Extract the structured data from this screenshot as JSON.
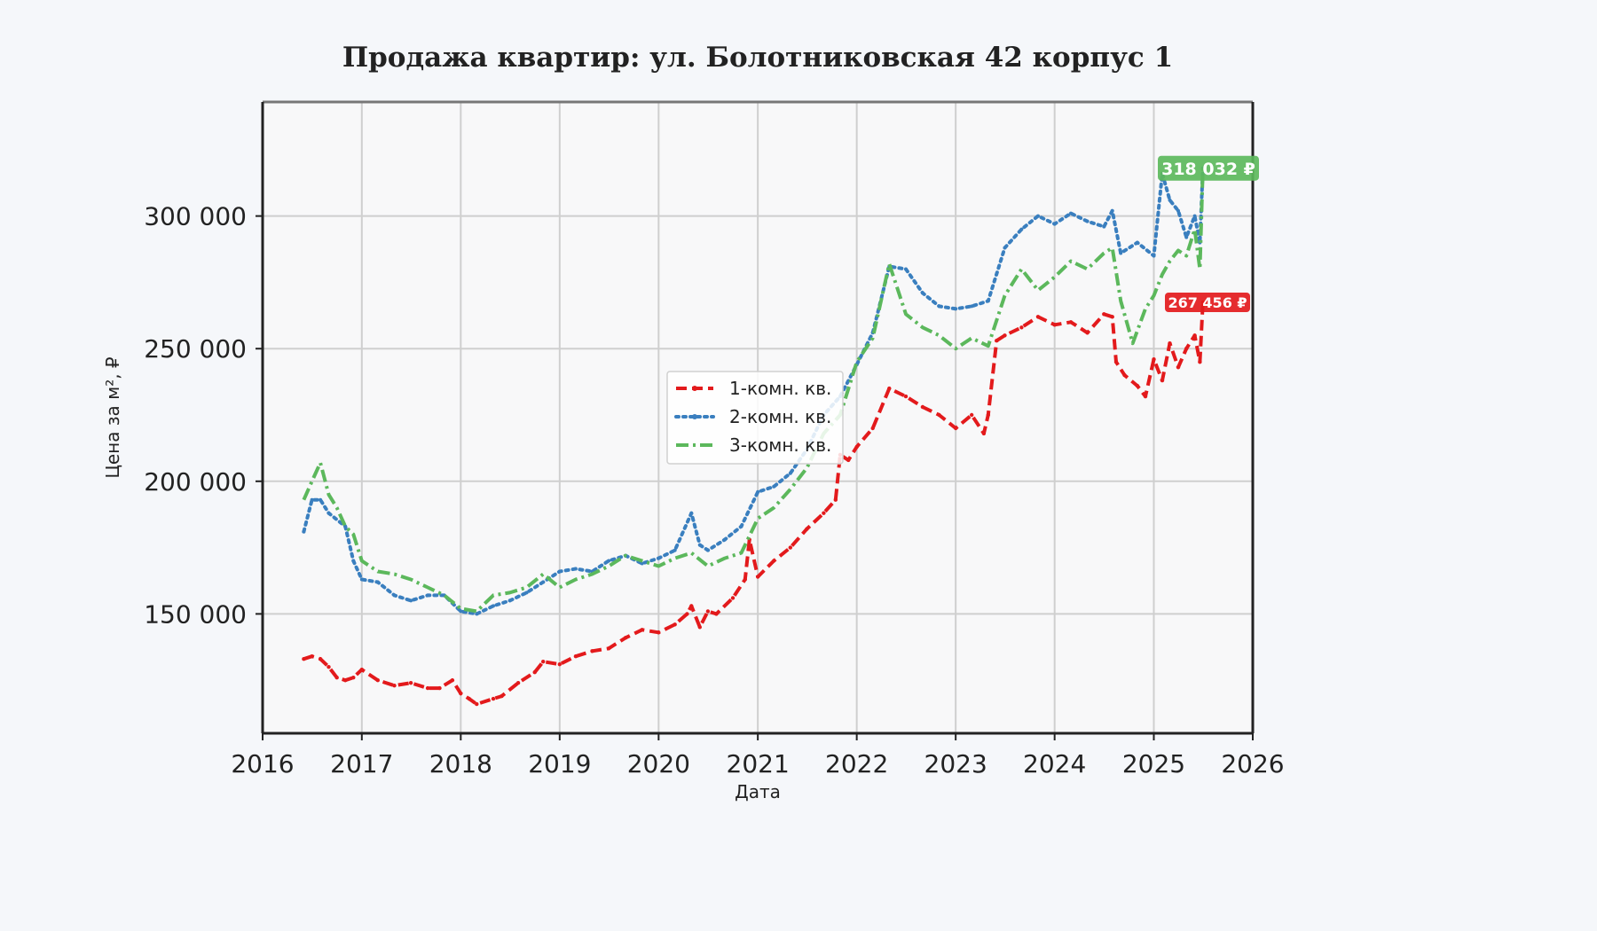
{
  "chart_data": {
    "type": "line",
    "title": "Продажа квартир: ул. Болотниковская 42 корпус 1",
    "xlabel": "Дата",
    "ylabel": "Цена за м², ₽",
    "xlim": [
      "2016-01-01",
      "2026-01-01"
    ],
    "ylim": [
      105000,
      343000
    ],
    "x_ticks": [
      "2016",
      "2017",
      "2018",
      "2019",
      "2020",
      "2021",
      "2022",
      "2023",
      "2024",
      "2025",
      "2026"
    ],
    "y_ticks": [
      {
        "value": 150000,
        "label": "150 000"
      },
      {
        "value": 200000,
        "label": "200 000"
      },
      {
        "value": 250000,
        "label": "250 000"
      },
      {
        "value": 300000,
        "label": "300 000"
      }
    ],
    "grid": true,
    "legend_position": "center",
    "series": [
      {
        "name": "1-комн. кв.",
        "color": "#e31a1c",
        "style": "dashed",
        "x": [
          "2016-06-01",
          "2016-07-01",
          "2016-08-01",
          "2016-09-01",
          "2016-10-01",
          "2016-11-01",
          "2016-12-01",
          "2017-01-01",
          "2017-03-01",
          "2017-05-01",
          "2017-07-01",
          "2017-09-01",
          "2017-10-15",
          "2017-12-01",
          "2018-01-01",
          "2018-02-01",
          "2018-03-01",
          "2018-05-01",
          "2018-06-01",
          "2018-08-01",
          "2018-10-01",
          "2018-11-01",
          "2019-01-01",
          "2019-03-01",
          "2019-05-01",
          "2019-07-01",
          "2019-09-01",
          "2019-11-01",
          "2020-01-01",
          "2020-03-01",
          "2020-04-15",
          "2020-05-01",
          "2020-06-01",
          "2020-07-01",
          "2020-08-01",
          "2020-10-01",
          "2020-11-15",
          "2020-12-01",
          "2021-01-01",
          "2021-03-01",
          "2021-05-01",
          "2021-07-01",
          "2021-09-01",
          "2021-10-15",
          "2021-11-01",
          "2021-12-01",
          "2022-01-01",
          "2022-03-01",
          "2022-05-01",
          "2022-07-01",
          "2022-09-01",
          "2022-11-01",
          "2023-01-01",
          "2023-03-01",
          "2023-04-15",
          "2023-05-01",
          "2023-06-01",
          "2023-07-01",
          "2023-09-01",
          "2023-11-01",
          "2024-01-01",
          "2024-03-01",
          "2024-05-01",
          "2024-07-01",
          "2024-08-01",
          "2024-08-15",
          "2024-09-15",
          "2024-11-01",
          "2024-12-01",
          "2025-01-01",
          "2025-02-01",
          "2025-03-01",
          "2025-04-01",
          "2025-05-01",
          "2025-06-01",
          "2025-06-20",
          "2025-07-01"
        ],
        "values": [
          133000,
          134000,
          133000,
          130000,
          126000,
          125000,
          126000,
          129000,
          125000,
          123000,
          124000,
          122000,
          122000,
          125000,
          120000,
          118000,
          116000,
          118000,
          119000,
          124000,
          128000,
          132000,
          131000,
          134000,
          136000,
          137000,
          141000,
          144000,
          143000,
          146000,
          150000,
          153000,
          145000,
          151000,
          150000,
          156000,
          163000,
          178000,
          164000,
          170000,
          175000,
          182000,
          188000,
          193000,
          210000,
          208000,
          213000,
          220000,
          235000,
          232000,
          228000,
          225000,
          220000,
          225000,
          218000,
          225000,
          253000,
          255000,
          258000,
          262000,
          259000,
          260000,
          256000,
          263000,
          262000,
          245000,
          240000,
          236000,
          232000,
          246000,
          238000,
          252000,
          243000,
          250000,
          255000,
          245000,
          267456
        ]
      },
      {
        "name": "2-комн. кв.",
        "color": "#3a7fbf",
        "style": "dotted",
        "x": [
          "2016-06-01",
          "2016-07-01",
          "2016-08-01",
          "2016-09-01",
          "2016-11-01",
          "2016-12-01",
          "2017-01-01",
          "2017-03-01",
          "2017-05-01",
          "2017-07-01",
          "2017-09-01",
          "2017-11-01",
          "2018-01-01",
          "2018-03-01",
          "2018-05-01",
          "2018-07-01",
          "2018-09-01",
          "2018-11-01",
          "2019-01-01",
          "2019-03-01",
          "2019-05-01",
          "2019-07-01",
          "2019-09-01",
          "2019-11-01",
          "2020-01-01",
          "2020-03-01",
          "2020-05-01",
          "2020-06-01",
          "2020-07-01",
          "2020-09-01",
          "2020-11-01",
          "2021-01-01",
          "2021-03-01",
          "2021-05-01",
          "2021-07-01",
          "2021-09-01",
          "2021-11-01",
          "2022-01-01",
          "2022-03-01",
          "2022-05-01",
          "2022-07-01",
          "2022-09-01",
          "2022-11-01",
          "2023-01-01",
          "2023-03-01",
          "2023-05-01",
          "2023-07-01",
          "2023-09-01",
          "2023-11-01",
          "2024-01-01",
          "2024-03-01",
          "2024-05-01",
          "2024-07-01",
          "2024-08-01",
          "2024-09-01",
          "2024-11-01",
          "2025-01-01",
          "2025-02-01",
          "2025-03-01",
          "2025-04-01",
          "2025-05-01",
          "2025-06-01",
          "2025-06-20",
          "2025-07-01"
        ],
        "values": [
          181000,
          193000,
          193000,
          188000,
          183000,
          170000,
          163000,
          162000,
          157000,
          155000,
          157000,
          157000,
          151000,
          150000,
          153000,
          155000,
          158000,
          162000,
          166000,
          167000,
          166000,
          170000,
          172000,
          169000,
          171000,
          174000,
          188000,
          176000,
          174000,
          178000,
          183000,
          196000,
          198000,
          203000,
          212000,
          225000,
          232000,
          244000,
          256000,
          281000,
          280000,
          271000,
          266000,
          265000,
          266000,
          268000,
          288000,
          295000,
          300000,
          297000,
          301000,
          298000,
          296000,
          302000,
          286000,
          290000,
          285000,
          316000,
          306000,
          302000,
          292000,
          300000,
          290000,
          318032
        ]
      },
      {
        "name": "3-комн. кв.",
        "color": "#5cb85c",
        "style": "dashdot",
        "x": [
          "2016-06-01",
          "2016-07-01",
          "2016-08-01",
          "2016-09-01",
          "2016-10-01",
          "2016-11-01",
          "2016-12-01",
          "2017-01-01",
          "2017-03-01",
          "2017-05-01",
          "2017-07-01",
          "2017-09-01",
          "2017-11-01",
          "2018-01-01",
          "2018-03-01",
          "2018-05-01",
          "2018-07-01",
          "2018-09-01",
          "2018-11-01",
          "2019-01-01",
          "2019-03-01",
          "2019-05-01",
          "2019-07-01",
          "2019-09-01",
          "2019-11-01",
          "2020-01-01",
          "2020-03-01",
          "2020-05-01",
          "2020-07-01",
          "2020-09-01",
          "2020-11-01",
          "2021-01-01",
          "2021-03-01",
          "2021-05-01",
          "2021-07-01",
          "2021-09-01",
          "2021-11-01",
          "2022-01-01",
          "2022-03-01",
          "2022-05-01",
          "2022-07-01",
          "2022-09-01",
          "2022-11-01",
          "2023-01-01",
          "2023-03-01",
          "2023-05-01",
          "2023-07-01",
          "2023-09-01",
          "2023-11-01",
          "2024-01-01",
          "2024-03-01",
          "2024-05-01",
          "2024-07-01",
          "2024-08-01",
          "2024-09-01",
          "2024-10-15",
          "2024-12-01",
          "2025-01-01",
          "2025-02-01",
          "2025-03-01",
          "2025-04-01",
          "2025-05-01",
          "2025-06-01",
          "2025-06-20",
          "2025-07-01"
        ],
        "values": [
          193000,
          200000,
          207000,
          195000,
          190000,
          183000,
          180000,
          170000,
          166000,
          165000,
          163000,
          160000,
          157000,
          152000,
          151000,
          157000,
          158000,
          160000,
          165000,
          160000,
          163000,
          165000,
          168000,
          172000,
          170000,
          168000,
          171000,
          173000,
          168000,
          171000,
          173000,
          186000,
          190000,
          197000,
          205000,
          218000,
          225000,
          245000,
          254000,
          282000,
          263000,
          258000,
          255000,
          250000,
          254000,
          251000,
          270000,
          280000,
          272000,
          277000,
          283000,
          280000,
          286000,
          288000,
          268000,
          252000,
          265000,
          270000,
          278000,
          283000,
          287000,
          285000,
          295000,
          280000,
          318032
        ]
      }
    ],
    "annotations": [
      {
        "series": "2-комн. кв.",
        "label": "318 032 ₽",
        "color": "#5cb85c"
      },
      {
        "series": "1-комн. кв.",
        "label": "267 456 ₽",
        "color": "#e31a1c"
      }
    ]
  }
}
